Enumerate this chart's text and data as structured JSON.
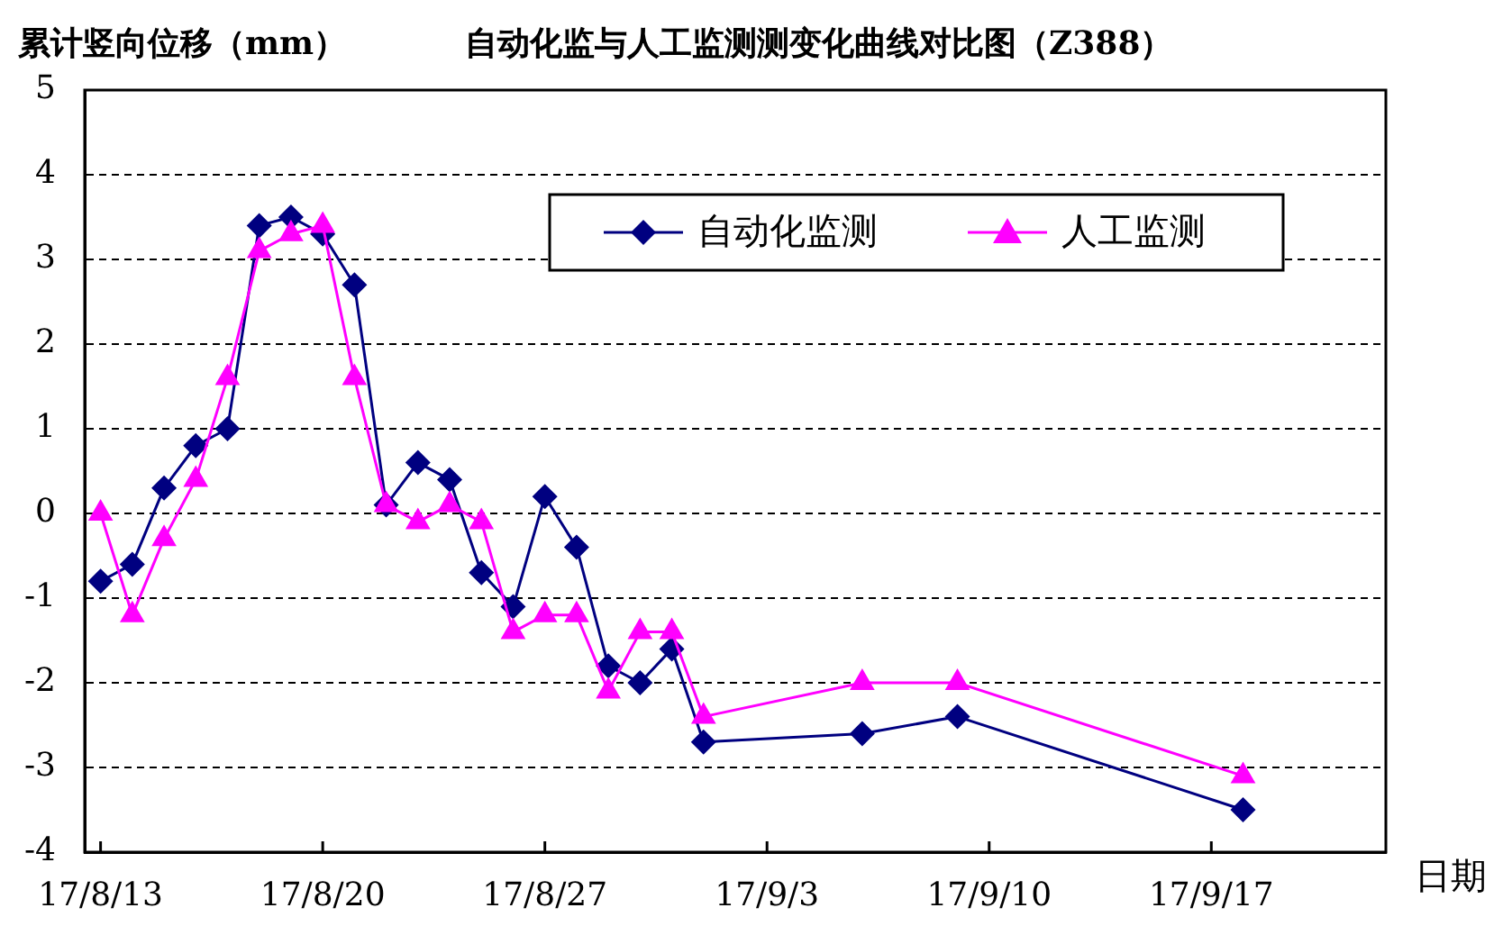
{
  "chart_data": {
    "type": "line",
    "title": "自动化监与人工监测测变化曲线对比图（Z388）",
    "ylabel": "累计竖向位移（mm）",
    "xlabel": "日期",
    "xlim": [
      "--08-12T12:00",
      "--09-22T12:00"
    ],
    "xticks": [
      {
        "value": "--08-13",
        "label": "17/8/13"
      },
      {
        "value": "--08-20",
        "label": "17/8/20"
      },
      {
        "value": "--08-27",
        "label": "17/8/27"
      },
      {
        "value": "--09-03",
        "label": "17/9/3"
      },
      {
        "value": "--09-10",
        "label": "17/9/10"
      },
      {
        "value": "--09-17",
        "label": "17/9/17"
      }
    ],
    "ylim": [
      -4,
      5
    ],
    "yticks": [
      -4,
      -3,
      -2,
      -1,
      0,
      1,
      2,
      3,
      4,
      5
    ],
    "grid": "y",
    "legend": "top right",
    "line_style": "solid",
    "series": [
      {
        "name": "自动化监测",
        "color": "#000080",
        "marker": "diamond",
        "x": [
          "--08-13",
          "--08-14",
          "--08-15",
          "--08-16",
          "--08-17",
          "--08-18",
          "--08-19",
          "--08-20",
          "--08-21",
          "--08-22",
          "--08-23",
          "--08-24",
          "--08-25",
          "--08-26",
          "--08-27",
          "--08-28",
          "--08-29",
          "--08-30",
          "--08-31",
          "--09-01",
          "--09-06",
          "--09-09",
          "--09-18"
        ],
        "values": [
          -0.8,
          -0.6,
          0.3,
          0.8,
          1.0,
          3.4,
          3.5,
          3.3,
          2.7,
          0.1,
          0.6,
          0.4,
          -0.7,
          -1.1,
          0.2,
          -0.4,
          -1.8,
          -2.0,
          -1.6,
          -2.7,
          -2.6,
          -2.4,
          -3.5
        ]
      },
      {
        "name": "人工监测",
        "color": "#ff00ff",
        "marker": "triangle",
        "x": [
          "--08-13",
          "--08-14",
          "--08-15",
          "--08-16",
          "--08-17",
          "--08-18",
          "--08-19",
          "--08-20",
          "--08-21",
          "--08-22",
          "--08-23",
          "--08-24",
          "--08-25",
          "--08-26",
          "--08-27",
          "--08-28",
          "--08-29",
          "--08-30",
          "--08-31",
          "--09-01",
          "--09-06",
          "--09-09",
          "--09-18"
        ],
        "values": [
          0,
          -1.2,
          -0.3,
          0.4,
          1.6,
          3.1,
          3.3,
          3.4,
          1.6,
          0.1,
          -0.1,
          0.1,
          -0.1,
          -1.4,
          -1.2,
          -1.2,
          -2.1,
          -1.4,
          -1.4,
          -2.4,
          -2.0,
          -2.0,
          -3.1
        ]
      }
    ]
  }
}
